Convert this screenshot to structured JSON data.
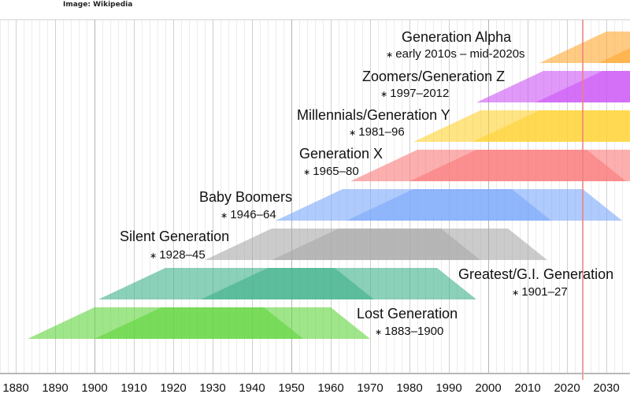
{
  "credit": "Image: Wikipedia",
  "chart_data": {
    "type": "timeline",
    "xlim": [
      1876,
      2036
    ],
    "x_ticks": [
      1880,
      1890,
      1900,
      1910,
      1920,
      1930,
      1940,
      1950,
      1960,
      1970,
      1980,
      1990,
      2000,
      2010,
      2020,
      2030
    ],
    "current_year_marker": 2024,
    "marker_color": "#f08080",
    "grid": true,
    "generations": [
      {
        "name": "Generation Alpha",
        "range_label": "early 2010s – mid-2020s",
        "start": 2013,
        "end": 2028,
        "color": "#ffa830"
      },
      {
        "name": "Zoomers/Generation Z",
        "range_label": "1997–2012",
        "start": 1997,
        "end": 2012,
        "color": "#cc55f5"
      },
      {
        "name": "Millennials/Generation Y",
        "range_label": "1981–96",
        "start": 1981,
        "end": 1996,
        "color": "#ffd230"
      },
      {
        "name": "Generation X",
        "range_label": "1965–80",
        "start": 1965,
        "end": 1980,
        "color": "#fa7a7a"
      },
      {
        "name": "Baby Boomers",
        "range_label": "1946–64",
        "start": 1946,
        "end": 1964,
        "color": "#7aa6fa"
      },
      {
        "name": "Silent Generation",
        "range_label": "1928–45",
        "start": 1928,
        "end": 1945,
        "color": "#a8a8a8"
      },
      {
        "name": "Greatest/G.I. Generation",
        "range_label": "1901–27",
        "start": 1901,
        "end": 1927,
        "color": "#3db089"
      },
      {
        "name": "Lost Generation",
        "range_label": "1883–1900",
        "start": 1883,
        "end": 1900,
        "color": "#5fd43a"
      }
    ]
  }
}
